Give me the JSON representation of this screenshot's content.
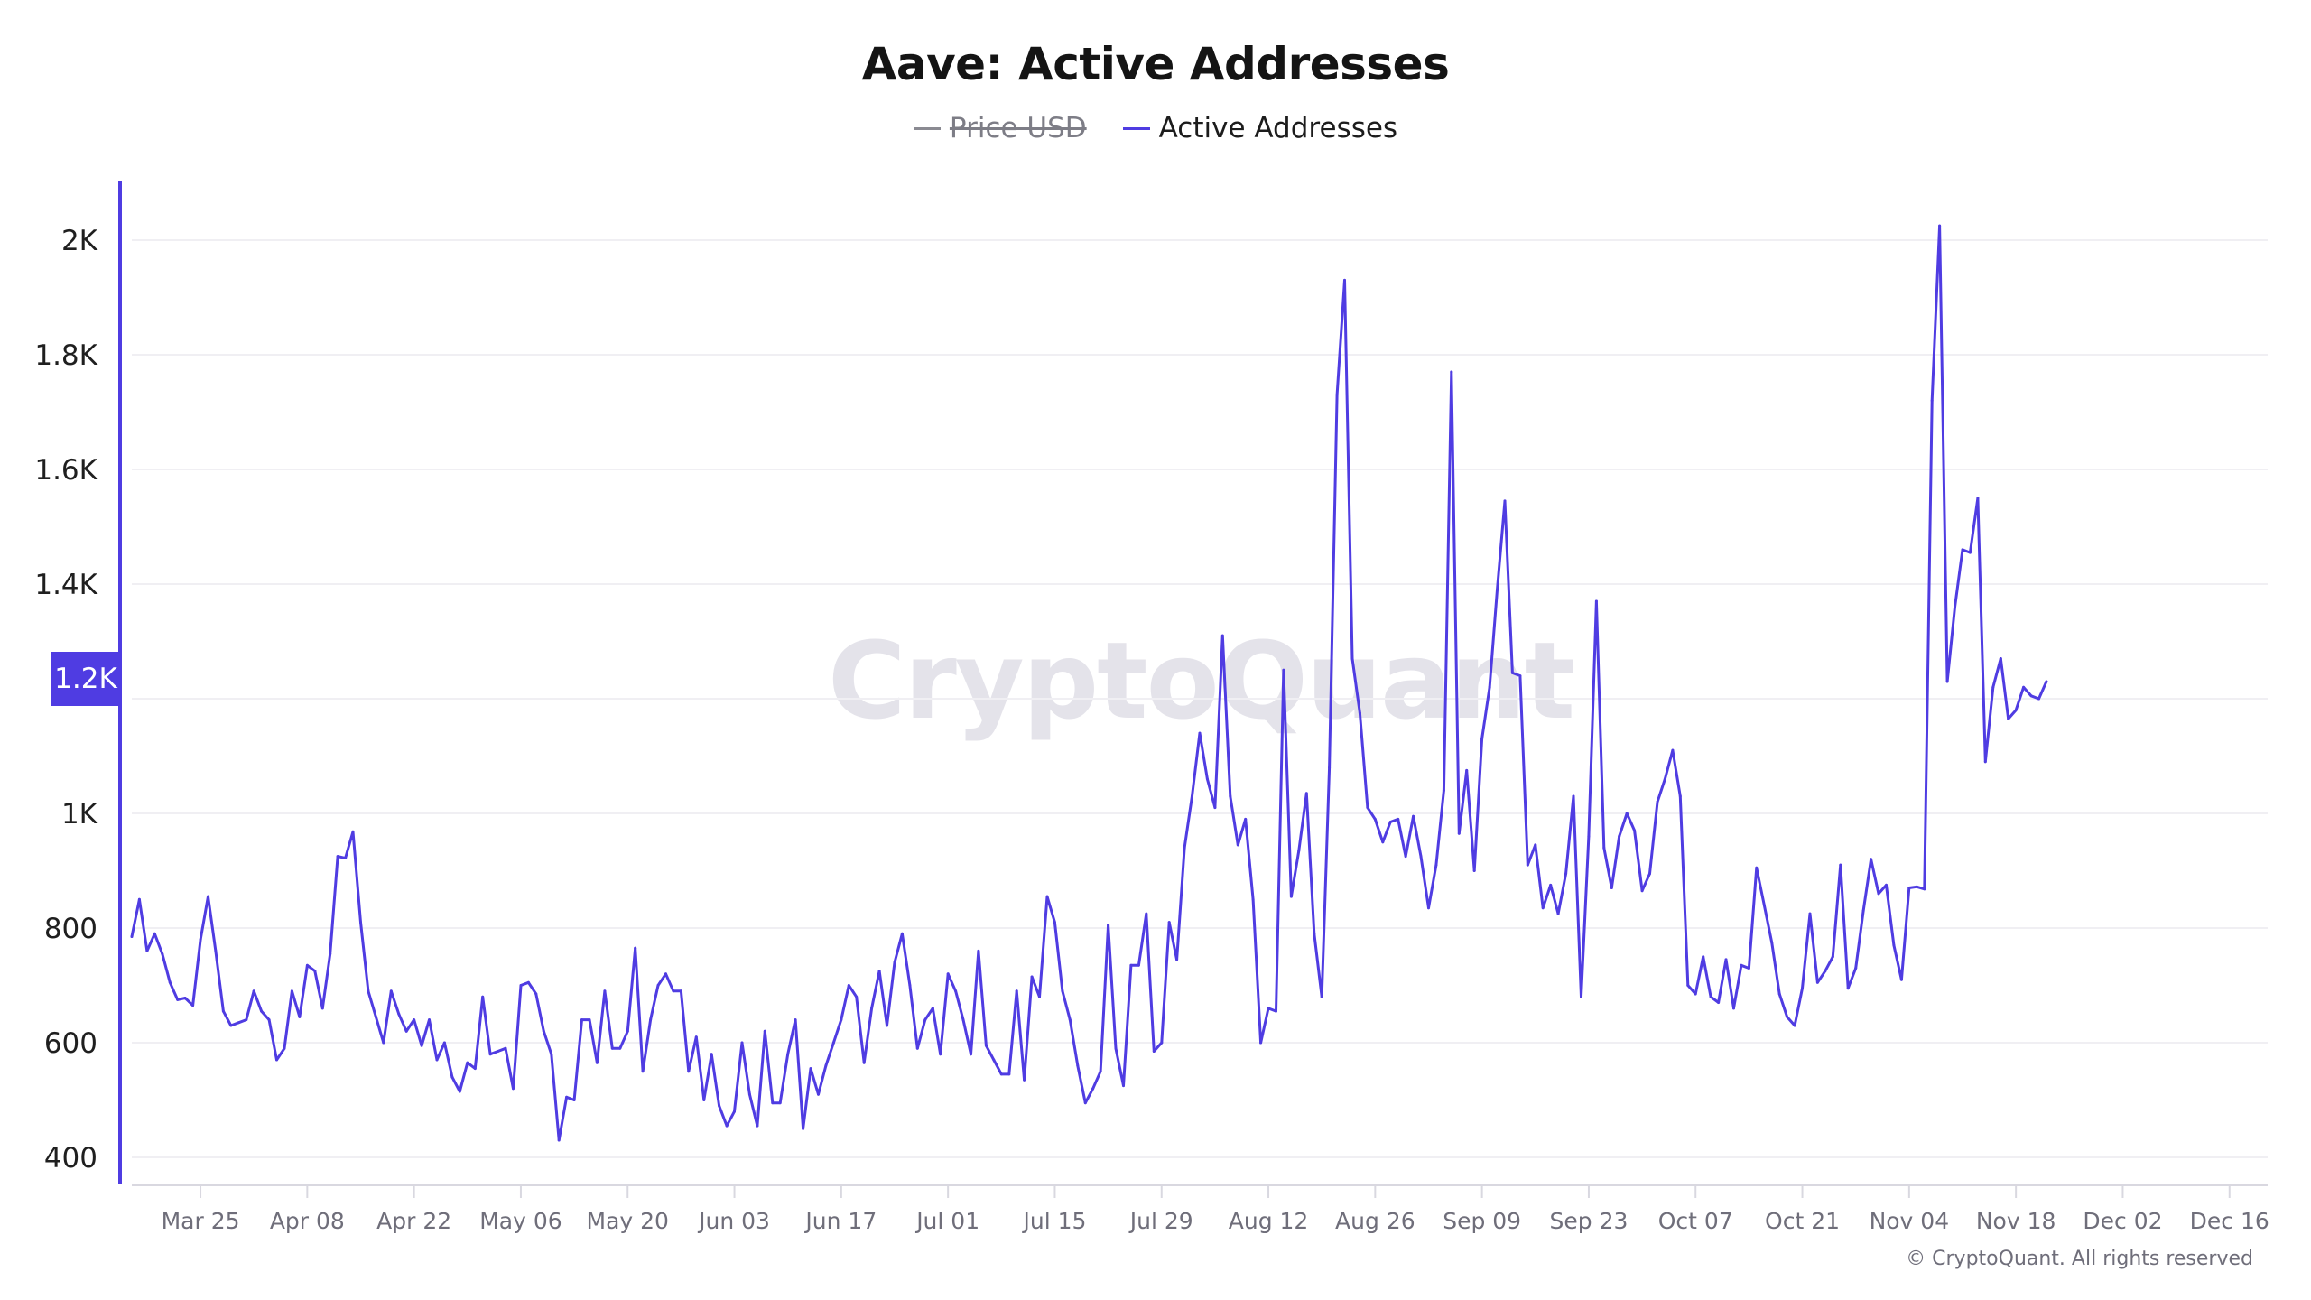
{
  "chart_data": {
    "type": "line",
    "title": "Aave: Active Addresses",
    "legend": [
      {
        "name": "Price USD",
        "color": "#8a8a92",
        "hidden": true
      },
      {
        "name": "Active Addresses",
        "color": "#4f3ce2",
        "hidden": false
      }
    ],
    "legend_position": "top-center",
    "xlabel": "",
    "ylabel": "",
    "x_start": "Mar 16",
    "x_end": "Nov 20",
    "x_tick_labels": [
      "Mar 25",
      "Apr 08",
      "Apr 22",
      "May 06",
      "May 20",
      "Jun 03",
      "Jun 17",
      "Jul 01",
      "Jul 15",
      "Jul 29",
      "Aug 12",
      "Aug 26",
      "Sep 09",
      "Sep 23",
      "Oct 07",
      "Oct 21",
      "Nov 04",
      "Nov 18",
      "Dec 02",
      "Dec 16"
    ],
    "x_tick_day_offsets": [
      9,
      23,
      37,
      51,
      65,
      79,
      93,
      107,
      121,
      135,
      149,
      163,
      177,
      191,
      205,
      219,
      233,
      247,
      261,
      275
    ],
    "x_range_days": [
      0,
      284
    ],
    "y_ticks": [
      400,
      600,
      800,
      1000,
      1200,
      1400,
      1600,
      1800,
      2000
    ],
    "y_tick_labels": [
      "400",
      "600",
      "800",
      "1K",
      "1.2K",
      "1.4K",
      "1.6K",
      "1.8K",
      "2K"
    ],
    "ylim": [
      350,
      2100
    ],
    "grid": true,
    "highlighted_y_label": "1.2K",
    "series": [
      {
        "name": "Active Addresses",
        "color": "#4f3ce2",
        "values": [
          785,
          850,
          760,
          790,
          755,
          705,
          675,
          678,
          665,
          780,
          855,
          760,
          655,
          630,
          635,
          640,
          690,
          655,
          640,
          570,
          590,
          690,
          645,
          735,
          725,
          660,
          755,
          925,
          922,
          968,
          810,
          690,
          645,
          600,
          690,
          650,
          620,
          640,
          595,
          640,
          570,
          600,
          540,
          515,
          565,
          555,
          680,
          580,
          585,
          590,
          520,
          700,
          705,
          685,
          620,
          580,
          430,
          505,
          500,
          640,
          640,
          565,
          690,
          590,
          590,
          620,
          765,
          550,
          640,
          700,
          720,
          690,
          690,
          550,
          610,
          500,
          580,
          490,
          455,
          480,
          600,
          510,
          455,
          620,
          495,
          495,
          580,
          640,
          450,
          555,
          510,
          560,
          600,
          640,
          700,
          680,
          565,
          660,
          725,
          630,
          740,
          790,
          700,
          590,
          640,
          660,
          580,
          720,
          690,
          640,
          580,
          760,
          595,
          570,
          545,
          545,
          690,
          535,
          715,
          680,
          855,
          810,
          690,
          640,
          560,
          495,
          520,
          550,
          805,
          590,
          525,
          735,
          735,
          825,
          585,
          600,
          810,
          745,
          940,
          1030,
          1140,
          1060,
          1010,
          1310,
          1030,
          945,
          990,
          850,
          600,
          660,
          655,
          1250,
          855,
          935,
          1035,
          790,
          680,
          1080,
          1730,
          1930,
          1270,
          1175,
          1010,
          990,
          950,
          985,
          990,
          925,
          995,
          925,
          835,
          910,
          1040,
          1770,
          965,
          1075,
          900,
          1130,
          1220,
          1390,
          1545,
          1245,
          1240,
          910,
          945,
          835,
          875,
          825,
          895,
          1030,
          680,
          960,
          1370,
          940,
          870,
          960,
          1000,
          970,
          865,
          895,
          1020,
          1060,
          1110,
          1030,
          700,
          685,
          750,
          680,
          670,
          745,
          660,
          735,
          730,
          905,
          840,
          775,
          685,
          645,
          630,
          695,
          825,
          705,
          725,
          750,
          910,
          695,
          730,
          830,
          920,
          860,
          875,
          770,
          710,
          870,
          872,
          868,
          1720,
          2025,
          1230,
          1360,
          1460,
          1455,
          1550,
          1090,
          1220,
          1270,
          1165,
          1180,
          1220,
          1205,
          1200,
          1230
        ]
      }
    ]
  },
  "watermark": "CryptoQuant",
  "copyright": "© CryptoQuant. All rights reserved"
}
